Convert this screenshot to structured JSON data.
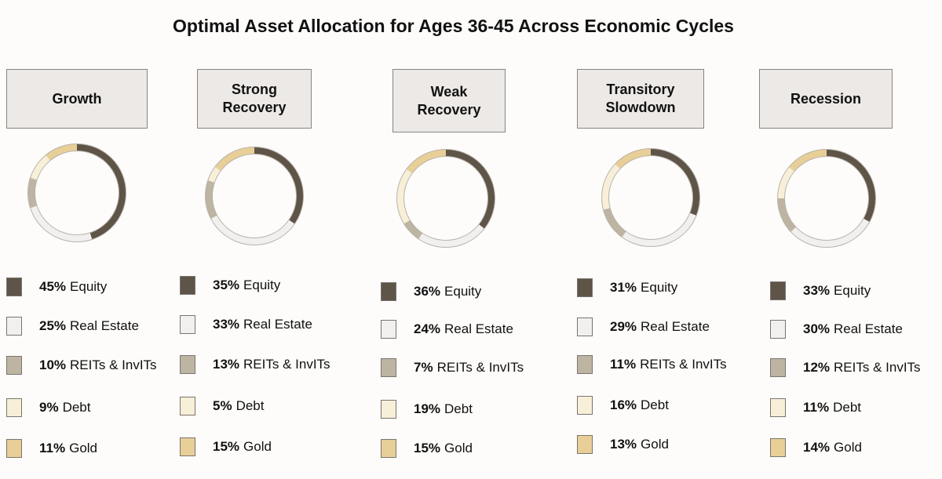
{
  "chart_data": {
    "type": "pie",
    "variant": "donut",
    "title": "Optimal Asset Allocation for Ages 36-45 Across Economic Cycles",
    "asset_classes": [
      "Equity",
      "Real Estate",
      "REITs & InvITs",
      "Debt",
      "Gold"
    ],
    "colors": {
      "Equity": "#5e5448",
      "Real Estate": "#f1f0ee",
      "REITs & InvITs": "#bdb5a2",
      "Debt": "#f7efd7",
      "Gold": "#e8cf97"
    },
    "cycles": [
      {
        "name": "Growth",
        "values": [
          45,
          25,
          10,
          9,
          11
        ]
      },
      {
        "name": "Strong\nRecovery",
        "values": [
          35,
          33,
          13,
          5,
          15
        ]
      },
      {
        "name": "Weak\nRecovery",
        "values": [
          36,
          24,
          7,
          19,
          15
        ]
      },
      {
        "name": "Transitory\nSlowdown",
        "values": [
          31,
          29,
          11,
          16,
          13
        ]
      },
      {
        "name": "Recession",
        "values": [
          33,
          30,
          12,
          11,
          14
        ]
      }
    ]
  }
}
